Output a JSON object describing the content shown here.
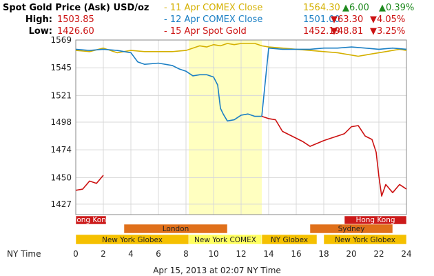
{
  "header": {
    "title": "Spot Gold Price (Ask) USD/oz",
    "high_label": "High:",
    "high_value": "1503.85",
    "low_label": "Low:",
    "low_value": "1426.60",
    "rows": [
      {
        "label": "- 11 Apr COMEX Close",
        "price": "1564.30",
        "change": "▲6.00",
        "pct": "▲0.39%",
        "color": "#d4b000",
        "change_color": "#1f8a1f"
      },
      {
        "label": "- 12 Apr COMEX Close",
        "price": "1501.00",
        "change": "▼63.30",
        "pct": "▼4.05%",
        "color": "#1b7fc4",
        "change_color": "#cc1111"
      },
      {
        "label": "- 15 Apr Spot Gold",
        "price": "1452.19",
        "change": "▼48.81",
        "pct": "▼3.25%",
        "color": "#cc1111",
        "change_color": "#cc1111"
      }
    ]
  },
  "sessions": [
    {
      "name": "Hong Kong",
      "start": 0,
      "end": 2.2,
      "row": 0,
      "color": "#cc1a1a"
    },
    {
      "name": "Hong Kong",
      "start": 19.5,
      "end": 24,
      "row": 0,
      "color": "#cc1a1a"
    },
    {
      "name": "London",
      "start": 3.5,
      "end": 11,
      "row": 1,
      "color": "#e0701a"
    },
    {
      "name": "Sydney",
      "start": 17,
      "end": 23,
      "row": 1,
      "color": "#e0701a"
    },
    {
      "name": "New York Globex",
      "start": 0,
      "end": 8.2,
      "row": 2,
      "color": "#f5c000"
    },
    {
      "name": "New York COMEX",
      "start": 8.2,
      "end": 13.5,
      "row": 2,
      "color": "#ffff60"
    },
    {
      "name": "NY Globex",
      "start": 13.5,
      "end": 17.5,
      "row": 2,
      "color": "#f5c000"
    },
    {
      "name": "New York Globex",
      "start": 18,
      "end": 24,
      "row": 2,
      "color": "#f5c000"
    }
  ],
  "x_axis_label": "NY Time",
  "timestamp": "Apr 15, 2013 at 02:07 NY Time",
  "chart_data": {
    "type": "line",
    "x_unit": "hours (NY Time)",
    "xlim": [
      0,
      24
    ],
    "ylim": [
      1418,
      1569
    ],
    "yticks": [
      1427,
      1450,
      1474,
      1498,
      1521,
      1545,
      1569
    ],
    "xticks": [
      0,
      2,
      4,
      6,
      8,
      10,
      12,
      14,
      16,
      18,
      20,
      22,
      24
    ],
    "grid": true,
    "highlight_band": [
      8.2,
      13.5
    ],
    "series": [
      {
        "name": "11 Apr COMEX Close",
        "color": "#d4b000",
        "x": [
          0,
          1,
          2,
          3,
          4,
          5,
          6,
          7,
          8,
          8.5,
          9,
          9.5,
          10,
          10.5,
          11,
          11.5,
          12,
          12.5,
          13,
          13.5,
          14,
          15,
          16,
          17,
          18,
          19,
          20,
          20.5,
          21,
          21.5,
          22,
          22.5,
          23,
          23.5,
          24
        ],
        "y": [
          1560,
          1559,
          1562,
          1558,
          1560,
          1559,
          1559,
          1559,
          1560,
          1562,
          1564,
          1563,
          1565,
          1564,
          1566,
          1565,
          1566,
          1566,
          1566,
          1564,
          1563,
          1562,
          1561,
          1560,
          1559,
          1558,
          1556,
          1555,
          1556,
          1557,
          1558,
          1559,
          1560,
          1561,
          1560
        ]
      },
      {
        "name": "12 Apr COMEX Close",
        "color": "#1b7fc4",
        "x": [
          0,
          1,
          2,
          3,
          4,
          4.5,
          5,
          6,
          7,
          7.5,
          8,
          8.5,
          9,
          9.5,
          10,
          10.3,
          10.5,
          10.7,
          11,
          11.5,
          12,
          12.5,
          13,
          13.5,
          14,
          15,
          16,
          17,
          18,
          19,
          20,
          21,
          22,
          23,
          24
        ],
        "y": [
          1561,
          1560,
          1561,
          1560,
          1558,
          1550,
          1548,
          1549,
          1547,
          1544,
          1542,
          1538,
          1539,
          1539,
          1537,
          1530,
          1510,
          1505,
          1499,
          1500,
          1504,
          1505,
          1503,
          1503,
          1562,
          1561,
          1561,
          1561,
          1562,
          1562,
          1563,
          1562,
          1561,
          1562,
          1561
        ]
      },
      {
        "name": "15 Apr Spot Gold",
        "color": "#cc1111",
        "x": [
          0,
          0.5,
          1,
          1.5,
          2,
          13.5,
          14,
          14.5,
          15,
          15.5,
          16,
          16.5,
          17,
          18,
          18.5,
          19,
          19.5,
          20,
          20.5,
          21,
          21.5,
          21.8,
          22,
          22.2,
          22.5,
          23,
          23.5,
          24
        ],
        "y": [
          1439,
          1440,
          1447,
          1445,
          1452,
          1503,
          1501,
          1500,
          1490,
          1487,
          1484,
          1481,
          1477,
          1482,
          1484,
          1486,
          1488,
          1494,
          1495,
          1486,
          1483,
          1472,
          1451,
          1434,
          1444,
          1437,
          1444,
          1440
        ]
      }
    ]
  }
}
